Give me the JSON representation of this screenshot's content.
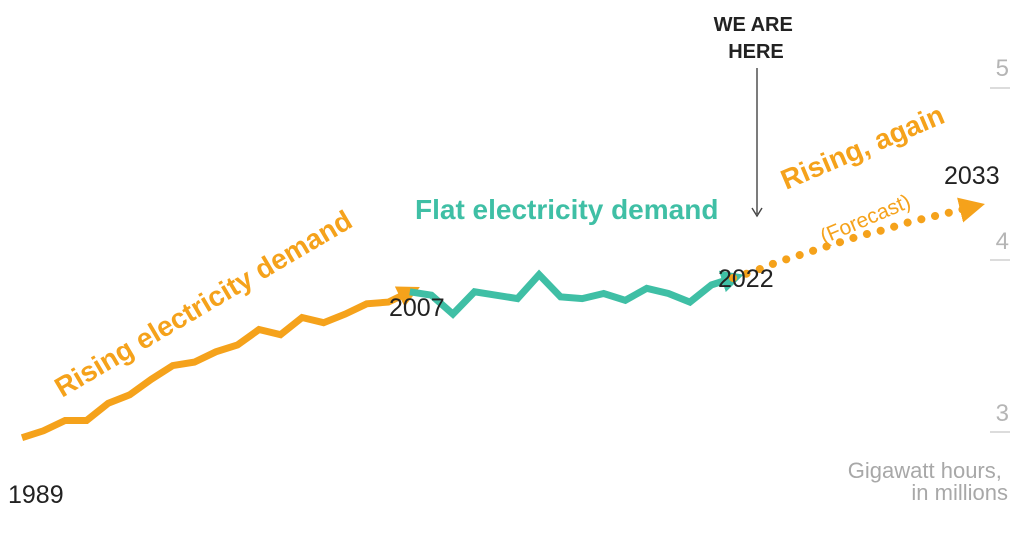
{
  "chart_data": {
    "type": "line",
    "title": "",
    "xlabel": "",
    "ylabel": "Gigawatt hours, in millions",
    "ylim": [
      2.87,
      5.2
    ],
    "xlim": [
      1989,
      2033
    ],
    "y_ticks": [
      "5",
      "4",
      "3"
    ],
    "y_tick_values": [
      5,
      4,
      3
    ],
    "unit_label_lines": [
      "Gigawatt hours,",
      "in millions"
    ],
    "series": [
      {
        "name": "Rising electricity demand",
        "color": "#f5a21b",
        "style": "solid",
        "x": [
          1989,
          1990,
          1991,
          1992,
          1993,
          1994,
          1995,
          1996,
          1997,
          1998,
          1999,
          2000,
          2001,
          2002,
          2003,
          2004,
          2005,
          2006,
          2007
        ],
        "values": [
          3.0,
          3.04,
          3.1,
          3.1,
          3.2,
          3.25,
          3.34,
          3.42,
          3.44,
          3.5,
          3.54,
          3.63,
          3.6,
          3.7,
          3.67,
          3.72,
          3.78,
          3.79,
          3.85
        ]
      },
      {
        "name": "Flat electricity demand",
        "color": "#3fbfa5",
        "style": "solid",
        "x": [
          2007,
          2008,
          2009,
          2010,
          2011,
          2012,
          2013,
          2014,
          2015,
          2016,
          2017,
          2018,
          2019,
          2020,
          2021,
          2022
        ],
        "values": [
          3.85,
          3.83,
          3.72,
          3.85,
          3.83,
          3.81,
          3.95,
          3.82,
          3.81,
          3.84,
          3.8,
          3.87,
          3.84,
          3.79,
          3.89,
          3.93
        ]
      },
      {
        "name": "Rising, again (Forecast)",
        "color": "#f5a21b",
        "style": "dotted",
        "x": [
          2022,
          2023,
          2024,
          2025,
          2026,
          2027,
          2028,
          2029,
          2030,
          2031,
          2032,
          2033
        ],
        "values": [
          3.93,
          3.97,
          4.02,
          4.06,
          4.1,
          4.14,
          4.18,
          4.21,
          4.25,
          4.28,
          4.31,
          4.34
        ]
      }
    ],
    "year_labels": {
      "start": "1989",
      "flat_start": "2007",
      "now": "2022",
      "end": "2033"
    },
    "phase_labels": {
      "rising": "Rising electricity demand",
      "flat": "Flat electricity demand",
      "rising_again": "Rising, again",
      "forecast": "(Forecast)"
    },
    "annotation_lines": [
      "WE ARE",
      "HERE"
    ],
    "colors": {
      "orange": "#f5a21b",
      "teal": "#3fbfa5",
      "grid": "#d0d0d0",
      "text": "#222222"
    }
  }
}
